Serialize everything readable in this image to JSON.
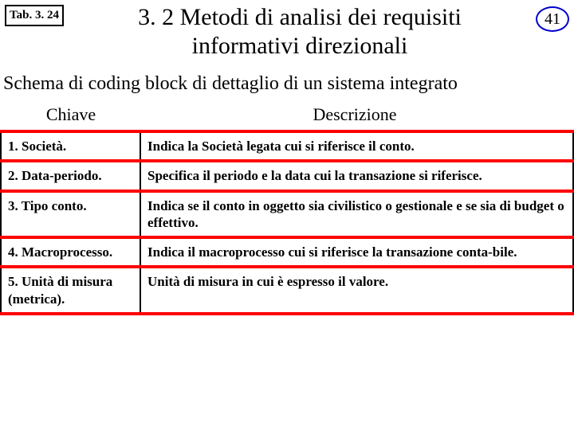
{
  "header": {
    "tab_label": "Tab. 3. 24",
    "title_line1": "3. 2 Metodi di analisi dei requisiti",
    "title_line2": "informativi direzionali",
    "slide_number": "41"
  },
  "subtitle": "Schema di coding block di dettaglio di un sistema integrato",
  "columns": {
    "key": "Chiave",
    "desc": "Descrizione"
  },
  "rows": [
    {
      "key": "1. Società.",
      "desc": "Indica la Società legata cui si riferisce il conto."
    },
    {
      "key": "2. Data-periodo.",
      "desc": "Specifica il periodo e la data cui la transazione si riferisce."
    },
    {
      "key": "3. Tipo conto.",
      "desc": "Indica se il conto in oggetto sia civilistico o gestionale e se sia di budget o effettivo."
    },
    {
      "key": "4. Macroprocesso.",
      "desc": "Indica il macroprocesso cui si riferisce la transazione conta-bile."
    },
    {
      "key": "5. Unità di misura (metrica).",
      "desc": "Unità di misura in cui è espresso il valore."
    }
  ],
  "style": {
    "background_color": "#ffffff",
    "text_color": "#000000",
    "row_border_color": "#ff0000",
    "col_border_color": "#000000",
    "slide_num_border_color": "#0000cc",
    "title_fontsize": 30,
    "subtitle_fontsize": 24,
    "colheader_fontsize": 22,
    "cell_fontsize": 17,
    "tab_fontsize": 15,
    "row_border_width": 4,
    "col_border_width": 2
  }
}
